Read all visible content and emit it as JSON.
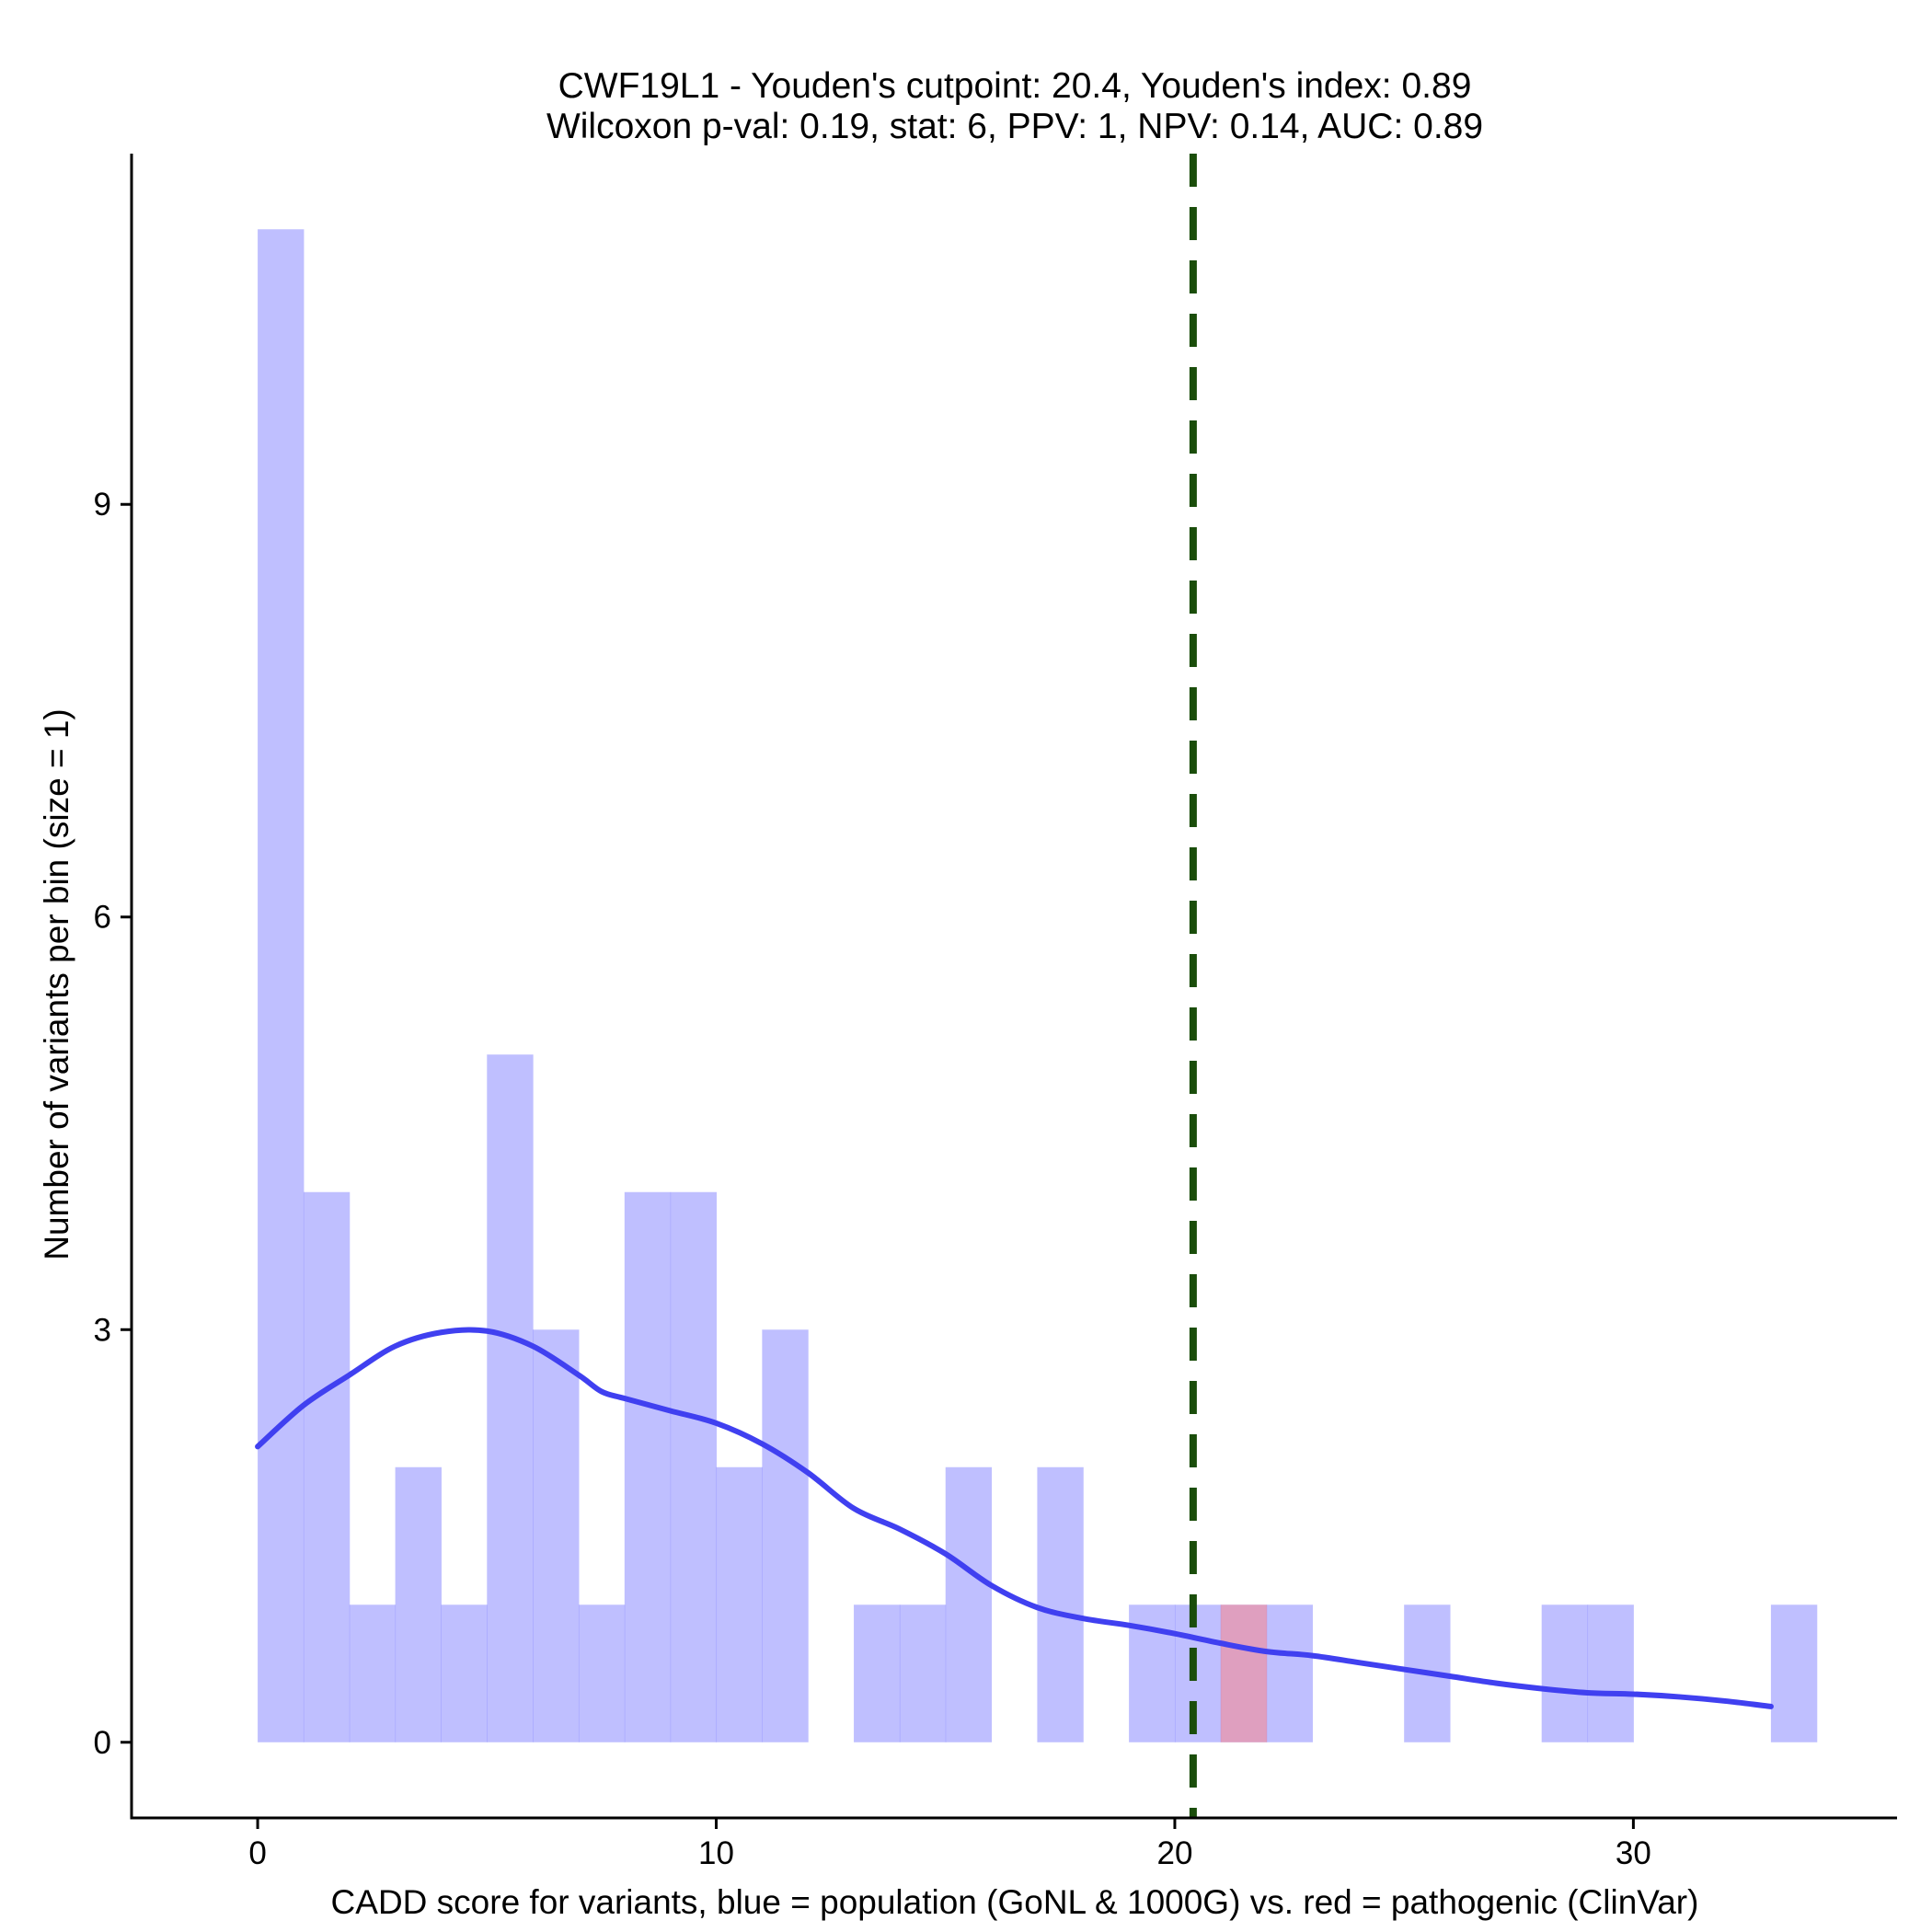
{
  "chart_data": {
    "type": "bar",
    "title": "CWF19L1 - Youden's cutpoint: 20.4, Youden's index: 0.89",
    "subtitle": "Wilcoxon p-val: 0.19, stat: 6, PPV: 1, NPV: 0.14, AUC: 0.89",
    "xlabel": "CADD score for variants, blue = population (GoNL & 1000G) vs. red = pathogenic (ClinVar)",
    "ylabel": "Number of variants per bin (size = 1)",
    "xlim": [
      -2.75,
      35.75
    ],
    "ylim": [
      -0.55,
      11.55
    ],
    "x_ticks": [
      0,
      10,
      20,
      30
    ],
    "y_ticks": [
      0,
      3,
      6,
      9
    ],
    "x_tick_labels": [
      "0",
      "10",
      "20",
      "30"
    ],
    "y_tick_labels": [
      "0",
      "3",
      "6",
      "9"
    ],
    "bin_width": 1,
    "series": [
      {
        "name": "population (GoNL & 1000G)",
        "color": "#8080ff",
        "opacity": 0.5,
        "bins": [
          {
            "start": 0,
            "count": 11
          },
          {
            "start": 1,
            "count": 4
          },
          {
            "start": 2,
            "count": 1
          },
          {
            "start": 3,
            "count": 2
          },
          {
            "start": 4,
            "count": 1
          },
          {
            "start": 5,
            "count": 5
          },
          {
            "start": 6,
            "count": 3
          },
          {
            "start": 7,
            "count": 1
          },
          {
            "start": 8,
            "count": 4
          },
          {
            "start": 9,
            "count": 4
          },
          {
            "start": 10,
            "count": 2
          },
          {
            "start": 11,
            "count": 3
          },
          {
            "start": 13,
            "count": 1
          },
          {
            "start": 14,
            "count": 1
          },
          {
            "start": 15,
            "count": 2
          },
          {
            "start": 17,
            "count": 2
          },
          {
            "start": 19,
            "count": 1
          },
          {
            "start": 20,
            "count": 1
          },
          {
            "start": 21,
            "count": 1
          },
          {
            "start": 22,
            "count": 1
          },
          {
            "start": 25,
            "count": 1
          },
          {
            "start": 28,
            "count": 1
          },
          {
            "start": 29,
            "count": 1
          },
          {
            "start": 33,
            "count": 1
          }
        ]
      },
      {
        "name": "pathogenic (ClinVar)",
        "color": "#ff8080",
        "opacity": 0.5,
        "bins": [
          {
            "start": 21,
            "count": 1
          }
        ]
      }
    ],
    "density_curve": {
      "name": "population density",
      "color": "#4040f0",
      "x": [
        0,
        1,
        2,
        3,
        4,
        5,
        6,
        7,
        7.5,
        8,
        9,
        10,
        11,
        12,
        13,
        14,
        15,
        16,
        17,
        18,
        19,
        20,
        21,
        22,
        23,
        24,
        25,
        26,
        27,
        28,
        29,
        30,
        31,
        32,
        33
      ],
      "y": [
        2.15,
        2.45,
        2.67,
        2.88,
        2.98,
        2.99,
        2.88,
        2.67,
        2.55,
        2.5,
        2.41,
        2.32,
        2.17,
        1.96,
        1.7,
        1.55,
        1.37,
        1.14,
        0.98,
        0.9,
        0.85,
        0.79,
        0.72,
        0.66,
        0.63,
        0.58,
        0.53,
        0.48,
        0.43,
        0.39,
        0.36,
        0.35,
        0.33,
        0.3,
        0.26
      ]
    },
    "cutpoint": {
      "x": 20.4,
      "color": "#1a4d0a",
      "style": "dashed"
    }
  }
}
